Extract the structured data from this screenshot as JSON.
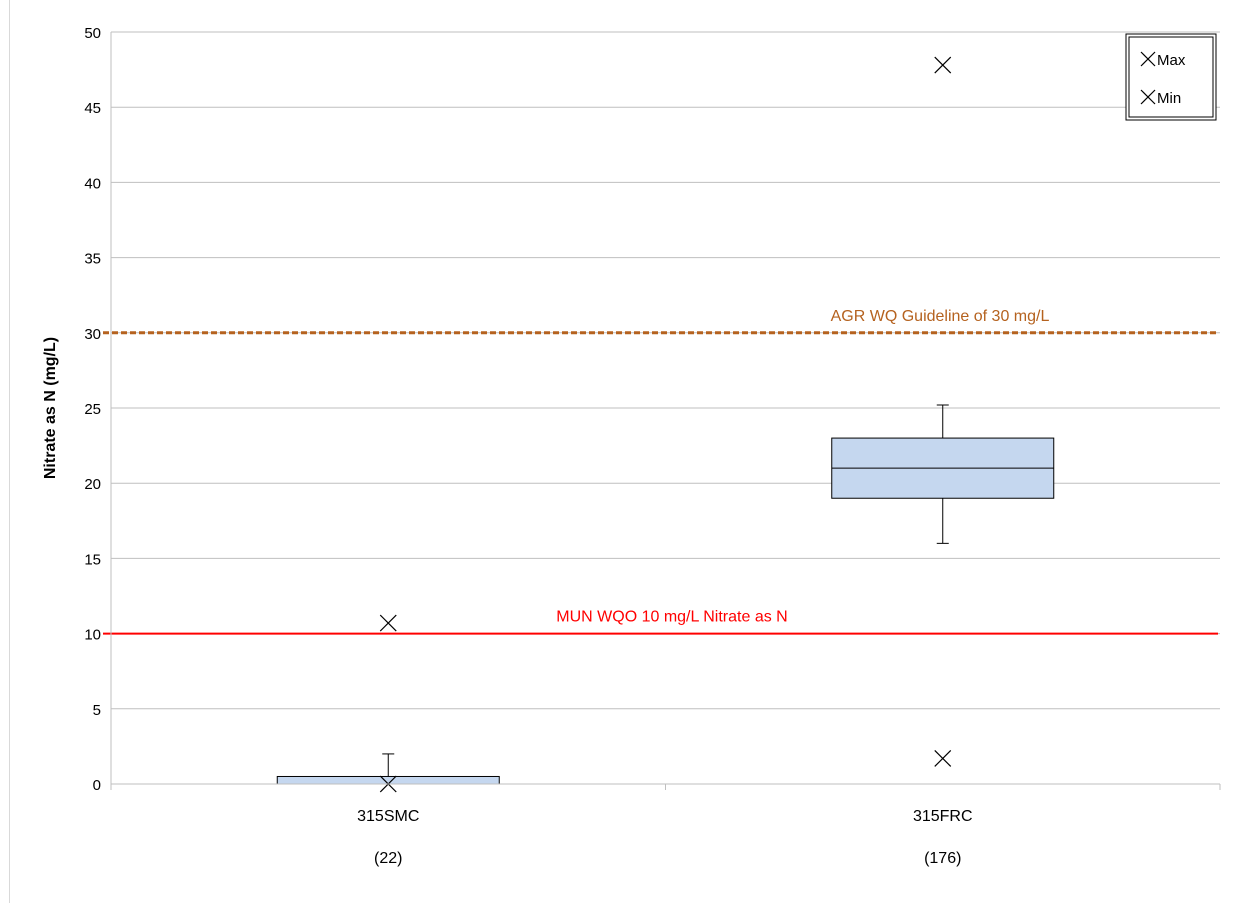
{
  "chart_data": {
    "type": "box",
    "ylabel": "Nitrate as N (mg/L)",
    "ylim": [
      0,
      50
    ],
    "yticks": [
      0,
      5,
      10,
      15,
      20,
      25,
      30,
      35,
      40,
      45,
      50
    ],
    "grid": true,
    "legend_position": "top-right",
    "legend": [
      {
        "marker": "x",
        "label": "Max"
      },
      {
        "marker": "x",
        "label": "Min"
      }
    ],
    "categories": [
      "315SMC",
      "315FRC"
    ],
    "counts": [
      "(22)",
      "(176)"
    ],
    "boxes": [
      {
        "name": "315SMC",
        "q1": 0,
        "median": 0,
        "q3": 0.5,
        "whisker_low": 0,
        "whisker_high": 2,
        "max": 10.7,
        "min": 0
      },
      {
        "name": "315FRC",
        "q1": 19,
        "median": 21,
        "q3": 23,
        "whisker_low": 16,
        "whisker_high": 25.2,
        "max": 47.8,
        "min": 1.7
      }
    ],
    "reference_lines": [
      {
        "value": 30,
        "label": "AGR WQ Guideline  of 30 mg/L",
        "color": "#b5621f",
        "style": "dashed"
      },
      {
        "value": 10,
        "label": "MUN WQO 10 mg/L Nitrate as N",
        "color": "#ff0000",
        "style": "solid"
      }
    ],
    "colors": {
      "box_fill": "#c5d7ef",
      "box_stroke": "#000000",
      "grid": "#bfbfbf",
      "axis": "#bfbfbf",
      "text": "#000000"
    }
  }
}
